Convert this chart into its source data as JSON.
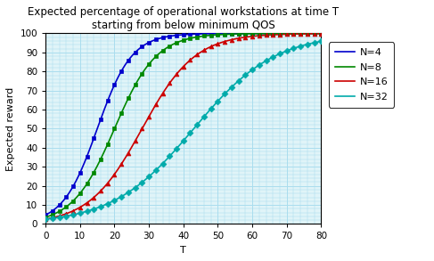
{
  "title_line1": "Expected percentage of operational workstations at time T",
  "title_line2": "starting from below minimum QOS",
  "xlabel": "T",
  "ylabel": "Expected reward",
  "xlim": [
    0,
    80
  ],
  "ylim": [
    0,
    100
  ],
  "xticks": [
    0,
    10,
    20,
    30,
    40,
    50,
    60,
    70,
    80
  ],
  "yticks": [
    0,
    10,
    20,
    30,
    40,
    50,
    60,
    70,
    80,
    90,
    100
  ],
  "series": [
    {
      "label": "N=4",
      "color": "#0000cc",
      "marker": "s",
      "k": 0.2,
      "x0": 15
    },
    {
      "label": "N=8",
      "color": "#008800",
      "marker": "s",
      "k": 0.165,
      "x0": 20
    },
    {
      "label": "N=16",
      "color": "#cc0000",
      "marker": "^",
      "k": 0.13,
      "x0": 28
    },
    {
      "label": "N=32",
      "color": "#00aaaa",
      "marker": "D",
      "k": 0.085,
      "x0": 43
    }
  ],
  "grid_color": "#aaddee",
  "background_color": "#e0f4f8",
  "marker_every": 2,
  "marker_size": 3.5,
  "linewidth": 1.2,
  "title_fontsize": 8.5,
  "axis_fontsize": 8,
  "tick_fontsize": 7.5,
  "legend_fontsize": 8
}
